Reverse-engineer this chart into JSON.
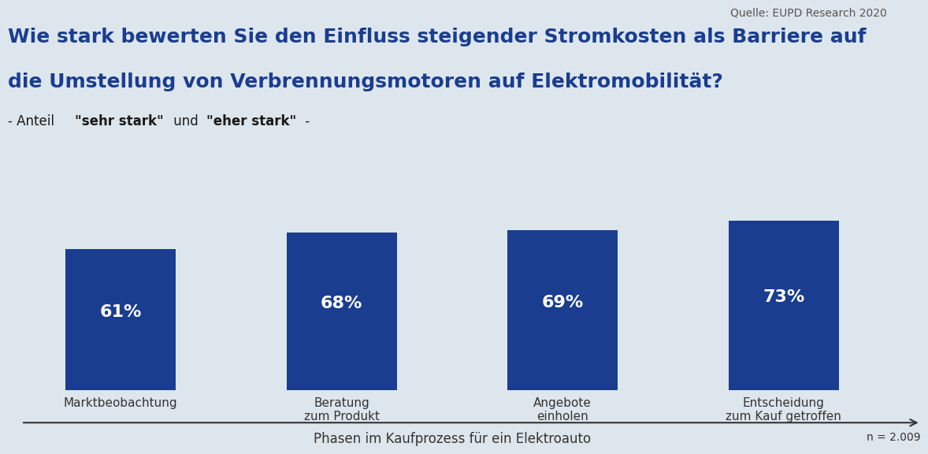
{
  "title_line1": "Wie stark bewerten Sie den Einfluss steigender Stromkosten als Barriere auf",
  "title_line2": "die Umstellung von Verbrennungsmotoren auf Elektromobilität?",
  "subtitle_prefix": "- Anteil ",
  "subtitle_bold1": "\"sehr stark\"",
  "subtitle_mid": " und ",
  "subtitle_bold2": "\"eher stark\"",
  "subtitle_suffix": " -",
  "source": "Quelle: EUPD Research 2020",
  "n_label": "n = 2.009",
  "xlabel": "Phasen im Kaufprozess für ein Elektroauto",
  "categories": [
    "Marktbeobachtung",
    "Beratung\nzum Produkt",
    "Angebote\neinholen",
    "Entscheidung\nzum Kauf getroffen"
  ],
  "values": [
    61,
    68,
    69,
    73
  ],
  "bar_color": "#1a3d8f",
  "value_labels": [
    "61%",
    "68%",
    "69%",
    "73%"
  ],
  "background_color": "#dde6ed",
  "title_color": "#1a3d8f",
  "subtitle_color": "#1a1a1a",
  "bar_label_color": "#ffffff",
  "axis_label_color": "#333333",
  "source_color": "#555555",
  "ylim": [
    0,
    90
  ],
  "title_fontsize": 18,
  "subtitle_fontsize": 12,
  "bar_label_fontsize": 16,
  "xlabel_fontsize": 12,
  "source_fontsize": 10,
  "category_fontsize": 11
}
